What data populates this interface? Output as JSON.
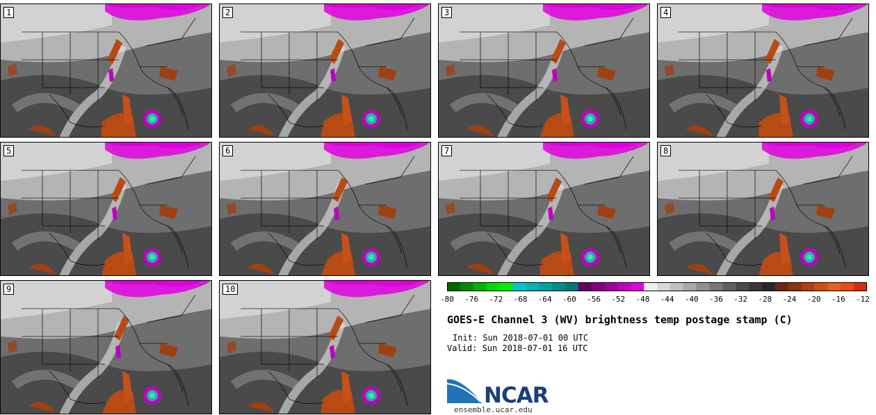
{
  "panels": [
    {
      "label": "1"
    },
    {
      "label": "2"
    },
    {
      "label": "3"
    },
    {
      "label": "4"
    },
    {
      "label": "5"
    },
    {
      "label": "6"
    },
    {
      "label": "7"
    },
    {
      "label": "8"
    },
    {
      "label": "9"
    },
    {
      "label": "10"
    }
  ],
  "colorbar": {
    "ticks": [
      "-80",
      "-76",
      "-72",
      "-68",
      "-64",
      "-60",
      "-56",
      "-52",
      "-48",
      "-44",
      "-40",
      "-36",
      "-32",
      "-28",
      "-24",
      "-20",
      "-16",
      "-12"
    ],
    "colors": [
      "#006400",
      "#008c00",
      "#00b400",
      "#00dc00",
      "#00f000",
      "#00c8c8",
      "#00b4b4",
      "#00a0a0",
      "#008c8c",
      "#007878",
      "#640064",
      "#800080",
      "#a000a0",
      "#c000c0",
      "#e000e0",
      "#f0f0f0",
      "#d8d8d8",
      "#c0c0c0",
      "#a8a8a8",
      "#909090",
      "#787878",
      "#606060",
      "#4a4a4a",
      "#383838",
      "#282828",
      "#6a2a10",
      "#8c3510",
      "#b04010",
      "#d05010",
      "#e86018",
      "#e84a10",
      "#d03010"
    ]
  },
  "title": "GOES-E Channel 3 (WV) brightness temp postage stamp (C)",
  "init_line": "Init: Sun 2018-07-01 00 UTC",
  "valid_line": "Valid: Sun 2018-07-01 16 UTC",
  "logo_text": "NCAR",
  "site": "ensemble.ucar.edu"
}
